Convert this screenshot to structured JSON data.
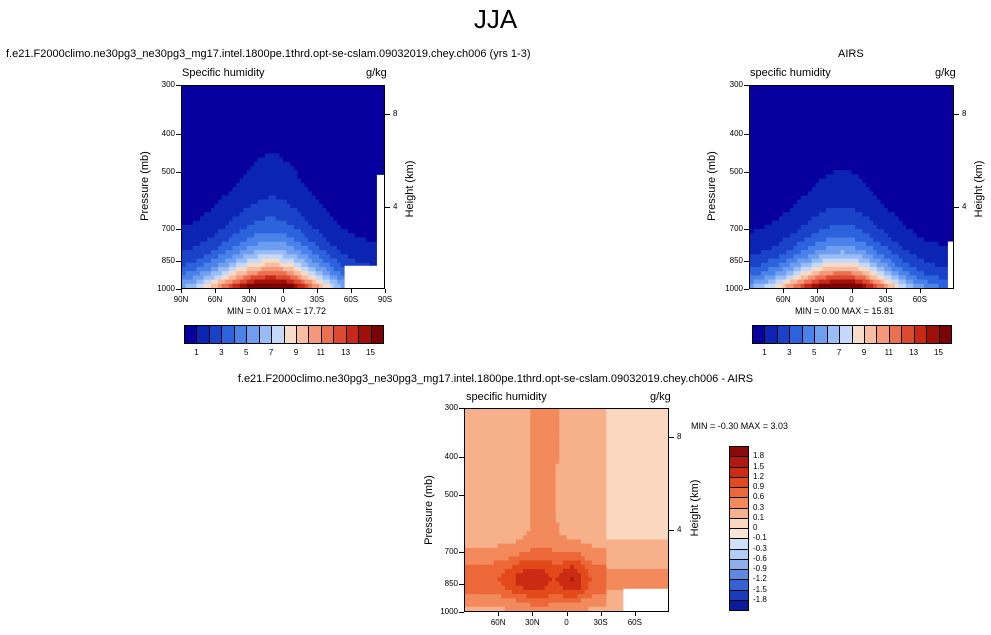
{
  "main_title": "JJA",
  "chart_data": [
    {
      "type": "heatmap",
      "title": "f.e21.F2000climo.ne30pg3_ne30pg3_mg17.intel.1800pe.1thrd.opt-se-cslam.09032019.chey.ch006 (yrs 1-3)",
      "left_label": "Specific humidity",
      "right_label": "g/kg",
      "ylabel": "Pressure (mb)",
      "ylabel_right": "Height (km)",
      "y_ticks": [
        "300",
        "400",
        "500",
        "700",
        "850",
        "1000"
      ],
      "y_right_ticks": [
        "8",
        "4"
      ],
      "x_ticks": [
        "90N",
        "60N",
        "30N",
        "0",
        "30S",
        "60S",
        "90S"
      ],
      "min_max_text": "MIN =   0.01   MAX =  17.72",
      "min": 0.01,
      "max": 17.72,
      "colorbar": {
        "labels": [
          "1",
          "3",
          "5",
          "7",
          "9",
          "11",
          "13",
          "15"
        ],
        "levels": [
          1,
          2,
          3,
          4,
          5,
          6,
          7,
          8,
          9,
          10,
          11,
          12,
          13,
          14,
          15
        ]
      }
    },
    {
      "type": "heatmap",
      "title": "AIRS",
      "left_label": "specific humidity",
      "right_label": "g/kg",
      "ylabel": "Pressure (mb)",
      "ylabel_right": "Height (km)",
      "y_ticks": [
        "300",
        "400",
        "500",
        "700",
        "850",
        "1000"
      ],
      "y_right_ticks": [
        "8",
        "4"
      ],
      "x_ticks": [
        "60N",
        "30N",
        "0",
        "30S",
        "60S"
      ],
      "min_max_text": "MIN =   0.00   MAX =  15.81",
      "min": 0.0,
      "max": 15.81,
      "colorbar": {
        "labels": [
          "1",
          "3",
          "5",
          "7",
          "9",
          "11",
          "13",
          "15"
        ],
        "levels": [
          1,
          2,
          3,
          4,
          5,
          6,
          7,
          8,
          9,
          10,
          11,
          12,
          13,
          14,
          15
        ]
      }
    },
    {
      "type": "heatmap",
      "title": "f.e21.F2000climo.ne30pg3_ne30pg3_mg17.intel.1800pe.1thrd.opt-se-cslam.09032019.chey.ch006 - AIRS",
      "left_label": "specific humidity",
      "right_label": "g/kg",
      "ylabel": "Pressure (mb)",
      "ylabel_right": "Height (km)",
      "y_ticks": [
        "300",
        "400",
        "500",
        "700",
        "850",
        "1000"
      ],
      "y_right_ticks": [
        "8",
        "4"
      ],
      "x_ticks": [
        "60N",
        "30N",
        "0",
        "30S",
        "60S"
      ],
      "min_max_text": "MIN =  -0.30   MAX =    3.03",
      "min": -0.3,
      "max": 3.03,
      "colorbar": {
        "labels": [
          "1.8",
          "1.5",
          "1.2",
          "0.9",
          "0.6",
          "0.3",
          "0.1",
          "0",
          "-0.1",
          "-0.3",
          "-0.6",
          "-0.9",
          "-1.2",
          "-1.5",
          "-1.8"
        ],
        "levels": [
          1.8,
          1.5,
          1.2,
          0.9,
          0.6,
          0.3,
          0.1,
          0,
          -0.1,
          -0.3,
          -0.6,
          -0.9,
          -1.2,
          -1.5,
          -1.8
        ]
      }
    }
  ],
  "colors": {
    "abs_palette": [
      "#08009e",
      "#0c24b4",
      "#1a42c8",
      "#2c62dc",
      "#4a82ea",
      "#6e9ef0",
      "#98bcf6",
      "#c4d8fa",
      "#f6dcc8",
      "#f8bca0",
      "#f49878",
      "#ea7050",
      "#dc4a30",
      "#c82818",
      "#a01008",
      "#7a0404"
    ],
    "diff_palette": [
      "#8a0a0a",
      "#b01810",
      "#cc2a12",
      "#e24a1c",
      "#ec6838",
      "#f28a5c",
      "#f6b08a",
      "#fad8c0",
      "#fbe6d6",
      "#d0e2f8",
      "#b2cdf4",
      "#8cb0ee",
      "#5e8ae2",
      "#3462d0",
      "#1a3cbc",
      "#0a1c9c"
    ]
  }
}
